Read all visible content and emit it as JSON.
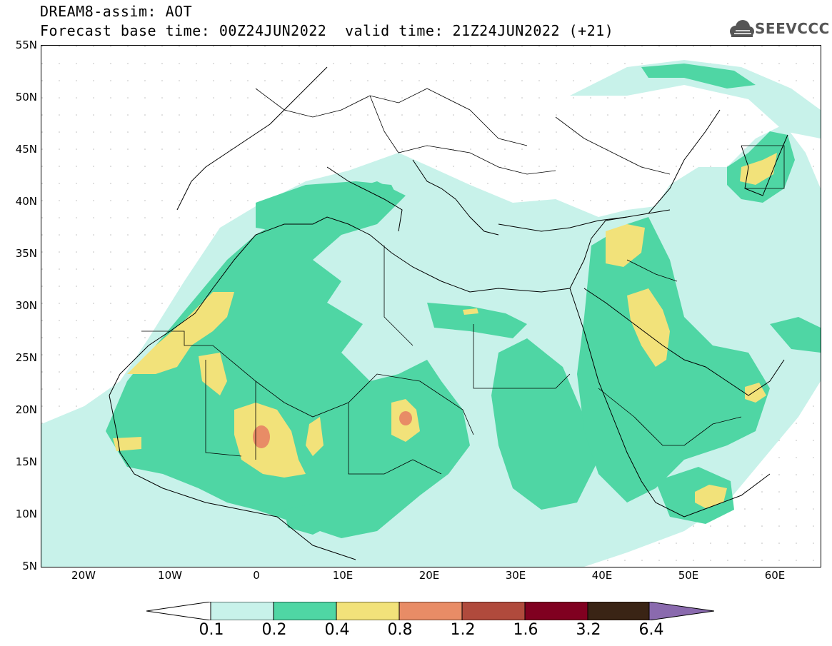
{
  "header": {
    "line1": "DREAM8-assim: AOT",
    "base_time": "Forecast base time: 00Z24JUN2022",
    "valid_time": "valid time: 21Z24JUN2022 (+21)",
    "logo_text": "SEEVCCC"
  },
  "axes": {
    "lat_labels": [
      "55N",
      "50N",
      "45N",
      "40N",
      "35N",
      "30N",
      "25N",
      "20N",
      "15N",
      "10N",
      "5N"
    ],
    "lon_labels": [
      "20W",
      "10W",
      "0",
      "10E",
      "20E",
      "30E",
      "40E",
      "50E",
      "60E"
    ]
  },
  "colorbar": {
    "labels": [
      "0.1",
      "0.2",
      "0.4",
      "0.8",
      "1.2",
      "1.6",
      "3.2",
      "6.4"
    ],
    "colors": [
      "#c8f2ea",
      "#4fd6a4",
      "#f2e27a",
      "#e88c66",
      "#b04a3c",
      "#800020",
      "#3a2415",
      "#8a6aae"
    ]
  },
  "colors": {
    "level_0_1": "#c8f2ea",
    "level_0_2": "#4fd6a4",
    "level_0_4": "#f2e27a",
    "level_0_8": "#e88c66"
  }
}
